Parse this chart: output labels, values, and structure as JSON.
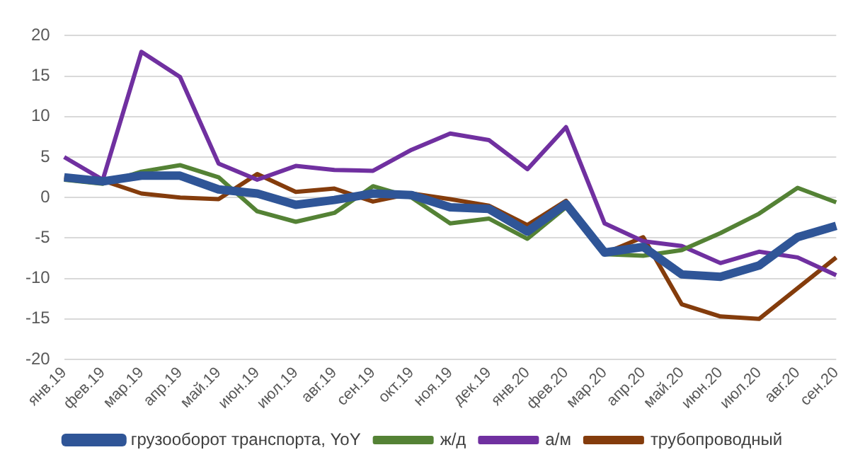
{
  "chart_data": {
    "type": "line",
    "categories": [
      "янв.19",
      "фев.19",
      "мар.19",
      "апр.19",
      "май.19",
      "июн.19",
      "июл.19",
      "авг.19",
      "сен.19",
      "окт.19",
      "ноя.19",
      "дек.19",
      "янв.20",
      "фев.20",
      "мар.20",
      "апр.20",
      "май.20",
      "июн.20",
      "июл.20",
      "авг.20",
      "сен.20"
    ],
    "series": [
      {
        "name": "грузооборот транспорта, YoY",
        "color": "#2f5597",
        "values": [
          2.5,
          2,
          2.7,
          2.7,
          1,
          0.5,
          -0.9,
          -0.3,
          0.5,
          0.3,
          -1.2,
          -1.4,
          -4.2,
          -0.8,
          -6.8,
          -6.1,
          -9.5,
          -9.8,
          -8.4,
          -4.9,
          -3.5
        ]
      },
      {
        "name": "ж/д",
        "color": "#548235",
        "values": [
          2.2,
          1.7,
          3.2,
          4,
          2.5,
          -1.7,
          -3,
          -1.9,
          1.4,
          0,
          -3.2,
          -2.6,
          -5.1,
          -1.2,
          -7,
          -7.2,
          -6.5,
          -4.4,
          -2,
          1.2,
          -0.6
        ]
      },
      {
        "name": "а/м",
        "color": "#7030a0",
        "values": [
          5,
          2.2,
          18,
          14.9,
          4.2,
          2.2,
          3.9,
          3.4,
          3.3,
          5.9,
          7.9,
          7.1,
          3.5,
          8.7,
          -3.2,
          -5.4,
          -6,
          -8.1,
          -6.7,
          -7.4,
          -9.6
        ]
      },
      {
        "name": "трубопроводный",
        "color": "#843c0c",
        "values": [
          2.5,
          2.1,
          0.5,
          0,
          -0.2,
          2.9,
          0.7,
          1.1,
          -0.5,
          0.5,
          -0.2,
          -1,
          -3.4,
          -0.4,
          -6.9,
          -4.9,
          -13.2,
          -14.7,
          -15,
          -11.2,
          -7.4
        ]
      }
    ],
    "ylim": [
      -20,
      20
    ],
    "yticks": [
      -20,
      -15,
      -10,
      -5,
      0,
      5,
      10,
      15,
      20
    ],
    "grid": "y",
    "legend": "bottom",
    "marker": "none",
    "line_style": "solid"
  }
}
